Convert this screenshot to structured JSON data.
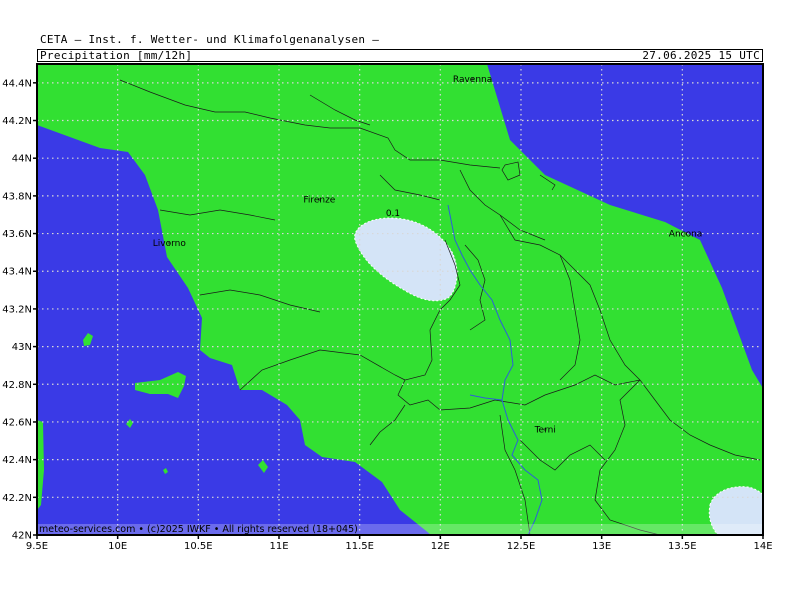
{
  "header": {
    "line1": "CETA — Inst. f. Wetter- und Klimafolgenanalysen —",
    "variable": "Precipitation [mm/12h]",
    "valid_time": "27.06.2025 15 UTC"
  },
  "map": {
    "lon_range": [
      9.5,
      14.0
    ],
    "lat_range": [
      42.0,
      44.5
    ],
    "x_ticks": [
      "9.5E",
      "10E",
      "10.5E",
      "11E",
      "11.5E",
      "12E",
      "12.5E",
      "13E",
      "13.5E",
      "14E"
    ],
    "y_ticks": [
      "42N",
      "42.2N",
      "42.4N",
      "42.6N",
      "42.8N",
      "43N",
      "43.2N",
      "43.4N",
      "43.6N",
      "43.8N",
      "44N",
      "44.2N",
      "44.4N"
    ],
    "cities": [
      {
        "name": "Ravenna",
        "lon": 12.2,
        "lat": 44.42
      },
      {
        "name": "Firenze",
        "lon": 11.25,
        "lat": 43.78
      },
      {
        "name": "Livorno",
        "lon": 10.32,
        "lat": 43.55
      },
      {
        "name": "Ancona",
        "lon": 13.52,
        "lat": 43.6
      },
      {
        "name": "Terni",
        "lon": 12.65,
        "lat": 42.56
      }
    ],
    "contour_label": "0.1",
    "colors": {
      "sea": "#3a3ae6",
      "land": "#32e032",
      "precip_light": "#d4e4f7",
      "border_line": "#1a1a1a",
      "river": "#2d5fd9",
      "grid": "#d8d8d8"
    },
    "credit": "meteo-services.com • (c)2025 IWKF • All rights reserved (18+045)"
  }
}
